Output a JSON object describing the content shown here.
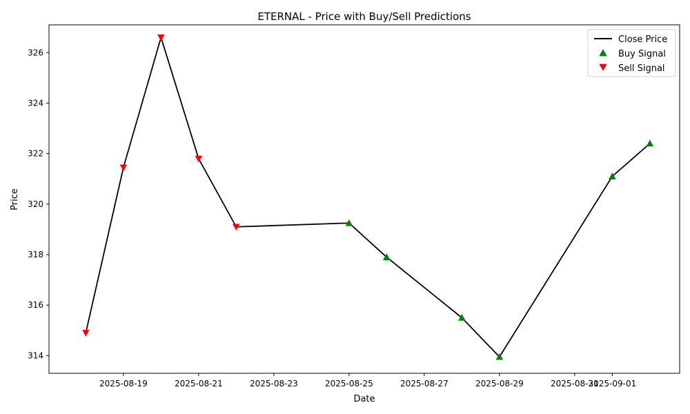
{
  "chart_data": {
    "type": "line",
    "title": "ETERNAL - Price with Buy/Sell Predictions",
    "xlabel": "Date",
    "ylabel": "Price",
    "xlim": [
      "2025-08-17T00:30:00",
      "2025-09-02T19:00:00"
    ],
    "ylim": [
      313.3,
      327.1
    ],
    "grid": false,
    "legend_position": "top-right",
    "x_ticks": [
      "2025-08-19",
      "2025-08-21",
      "2025-08-23",
      "2025-08-25",
      "2025-08-27",
      "2025-08-29",
      "2025-08-31",
      "2025-09-01"
    ],
    "y_ticks": [
      314,
      316,
      318,
      320,
      322,
      324,
      326
    ],
    "series": [
      {
        "name": "Close Price",
        "kind": "line",
        "color": "#000000",
        "x": [
          "2025-08-18",
          "2025-08-19",
          "2025-08-20",
          "2025-08-21",
          "2025-08-22",
          "2025-08-25",
          "2025-08-26",
          "2025-08-28",
          "2025-08-29",
          "2025-09-01",
          "2025-09-02"
        ],
        "y": [
          314.9,
          321.45,
          326.6,
          321.8,
          319.1,
          319.25,
          317.9,
          315.5,
          313.95,
          321.1,
          322.4
        ]
      },
      {
        "name": "Buy Signal",
        "kind": "scatter",
        "marker": "triangle-up",
        "color": "#008000",
        "x": [
          "2025-08-25",
          "2025-08-26",
          "2025-08-28",
          "2025-08-29",
          "2025-09-01",
          "2025-09-02"
        ],
        "y": [
          319.25,
          317.9,
          315.5,
          313.95,
          321.1,
          322.4
        ]
      },
      {
        "name": "Sell Signal",
        "kind": "scatter",
        "marker": "triangle-down",
        "color": "#ff0000",
        "x": [
          "2025-08-18",
          "2025-08-19",
          "2025-08-20",
          "2025-08-21",
          "2025-08-22"
        ],
        "y": [
          314.9,
          321.45,
          326.6,
          321.8,
          319.1
        ]
      }
    ]
  }
}
